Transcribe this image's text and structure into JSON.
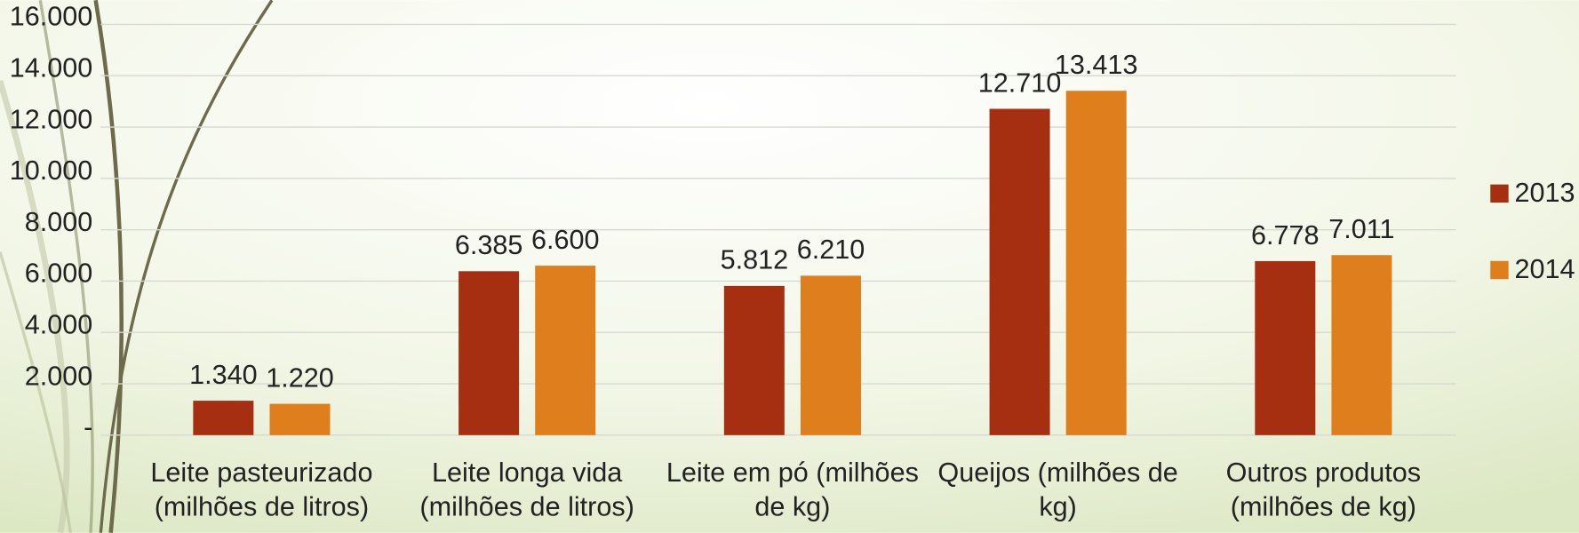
{
  "chart_data": {
    "type": "bar",
    "categories": [
      "Leite pasteurizado (milhões de litros)",
      "Leite longa vida (milhões de litros)",
      "Leite em pó (milhões de kg)",
      "Queijos (milhões de kg)",
      "Outros produtos (milhões de kg)"
    ],
    "series": [
      {
        "name": "2013",
        "color": "#a62f11",
        "values": [
          1340,
          6385,
          5812,
          12710,
          6778
        ],
        "value_labels": [
          "1.340",
          "6.385",
          "5.812",
          "12.710",
          "6.778"
        ]
      },
      {
        "name": "2014",
        "color": "#df7e1c",
        "values": [
          1220,
          6600,
          6210,
          13413,
          7011
        ],
        "value_labels": [
          "1.220",
          "6.600",
          "6.210",
          "13.413",
          "7.011"
        ]
      }
    ],
    "ylim": [
      0,
      16000
    ],
    "yticks": [
      {
        "value": 0,
        "label": "-"
      },
      {
        "value": 2000,
        "label": "2.000"
      },
      {
        "value": 4000,
        "label": "4.000"
      },
      {
        "value": 6000,
        "label": "6.000"
      },
      {
        "value": 8000,
        "label": "8.000"
      },
      {
        "value": 10000,
        "label": "10.000"
      },
      {
        "value": 12000,
        "label": "12.000"
      },
      {
        "value": 14000,
        "label": "14.000"
      },
      {
        "value": 16000,
        "label": "16.000"
      }
    ],
    "grid": true,
    "legend": "right"
  }
}
